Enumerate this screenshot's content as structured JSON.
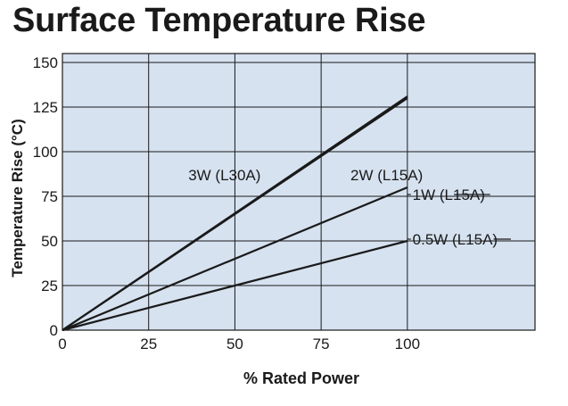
{
  "chart_data": {
    "type": "line",
    "title": "Surface Temperature Rise",
    "xlabel": "% Rated Power",
    "ylabel": "Temperature Rise (°C)",
    "xlim": [
      0,
      137
    ],
    "ylim": [
      0,
      155
    ],
    "x_ticks": [
      0,
      25,
      50,
      75,
      100
    ],
    "y_ticks": [
      0,
      25,
      50,
      75,
      100,
      125,
      150
    ],
    "grid": true,
    "background_color": "#d6e2f0",
    "line_color": "#1a1a1a",
    "series": [
      {
        "name": "3W (L30A)",
        "x": [
          0,
          100
        ],
        "y": [
          0,
          131
        ]
      },
      {
        "name": "2W (L15A)",
        "x": [
          0,
          100
        ],
        "y": [
          0,
          130
        ]
      },
      {
        "name": "1W (L15A)",
        "x": [
          0,
          100
        ],
        "y": [
          0,
          80
        ]
      },
      {
        "name": "0.5W (L15A)",
        "x": [
          0,
          100
        ],
        "y": [
          0,
          50
        ]
      }
    ]
  }
}
